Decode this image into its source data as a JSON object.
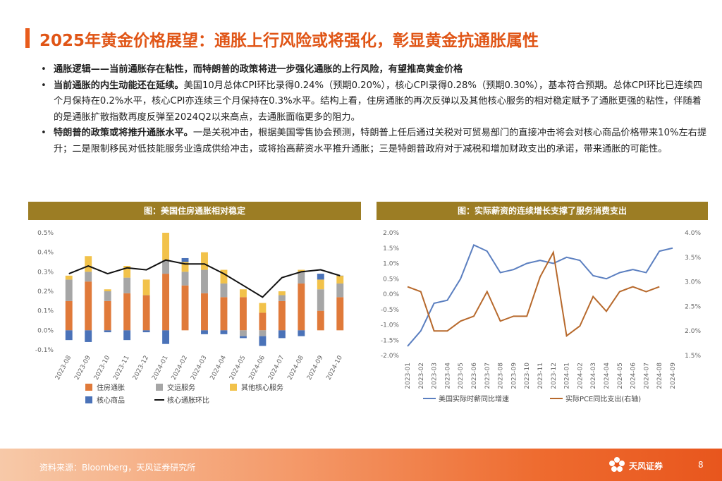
{
  "header": {
    "title": "2025年黄金价格展望：通胀上行风险或将强化，彰显黄金抗通胀属性"
  },
  "bullets": {
    "b1_bold": "通胀逻辑——当前通胀存在粘性，而特朗普的政策将进一步强化通胀的上行风险，有望推高黄金价格",
    "b2_bold": "当前通胀的内生动能还在延续。",
    "b2_text": "美国10月总体CPI环比录得0.24%（预期0.20%），核心CPI录得0.28%（预期0.30%），基本符合预期。总体CPI环比已连续四个月保持在0.2%水平，核心CPI亦连续三个月保持在0.3%水平。结构上看，住房通胀的再次反弹以及其他核心服务的相对稳定赋予了通胀更强的粘性，伴随着的是通胀扩散指数再度反弹至2024Q2以来高点，去通胀面临更多的阻力。",
    "b3_bold": "特朗普的政策或将推升通胀水平。",
    "b3_text": "一是关税冲击，根据美国零售协会预测，特朗普上任后通过关税对可贸易部门的直接冲击将会对核心商品价格带来10%左右提升；二是限制移民对低技能服务业造成供给冲击，或将抬高薪资水平推升通胀；三是特朗普政府对于减税和增加财政支出的承诺，带来通胀的可能性。"
  },
  "chart_data": [
    {
      "type": "bar",
      "title": "图：美国住房通胀相对稳定",
      "stacked": true,
      "categories": [
        "2023-08",
        "2023-09",
        "2023-10",
        "2023-11",
        "2023-12",
        "2024-01",
        "2024-02",
        "2024-03",
        "2024-04",
        "2024-05",
        "2024-06",
        "2024-07",
        "2024-08",
        "2024-09",
        "2024-10"
      ],
      "series": [
        {
          "name": "住房通胀",
          "color": "#e07a3a",
          "values": [
            0.15,
            0.25,
            0.15,
            0.19,
            0.18,
            0.29,
            0.23,
            0.19,
            0.17,
            0.17,
            0.09,
            0.15,
            0.24,
            0.1,
            0.17
          ]
        },
        {
          "name": "交运服务",
          "color": "#a6a6a6",
          "values": [
            0.11,
            0.05,
            0.05,
            0.08,
            0.0,
            0.07,
            0.07,
            0.12,
            0.07,
            -0.03,
            -0.03,
            0.03,
            0.06,
            0.11,
            0.07
          ]
        },
        {
          "name": "其他核心服务",
          "color": "#f2c24a",
          "values": [
            0.02,
            0.08,
            0.01,
            0.06,
            0.08,
            0.14,
            0.05,
            0.09,
            0.07,
            0.04,
            0.05,
            0.02,
            0.01,
            0.05,
            0.04
          ]
        },
        {
          "name": "核心商品",
          "color": "#4a72b8",
          "values": [
            -0.05,
            -0.06,
            -0.01,
            -0.05,
            -0.01,
            -0.07,
            0.02,
            -0.02,
            -0.02,
            -0.01,
            -0.05,
            -0.04,
            -0.03,
            0.03,
            0.0
          ]
        }
      ],
      "line": {
        "name": "核心通胀环比",
        "color": "#111111",
        "values": [
          0.29,
          0.33,
          0.29,
          0.32,
          0.31,
          0.36,
          0.34,
          0.34,
          0.29,
          0.23,
          0.17,
          0.27,
          0.3,
          0.31,
          0.28
        ]
      },
      "y_ticks": [
        "0.5%",
        "0.4%",
        "0.3%",
        "0.2%",
        "0.1%",
        "0.0%",
        "-0.1%"
      ],
      "ylim": [
        -0.1,
        0.5
      ],
      "legend_position": "bottom"
    },
    {
      "type": "line",
      "title": "图：实际薪资的连续增长支撑了服务消费支出",
      "categories": [
        "2023-01",
        "2023-02",
        "2023-03",
        "2023-04",
        "2023-05",
        "2023-06",
        "2023-07",
        "2023-08",
        "2023-09",
        "2023-10",
        "2023-11",
        "2023-12",
        "2024-01",
        "2024-02",
        "2024-03",
        "2024-04",
        "2024-05",
        "2024-06",
        "2024-07",
        "2024-08",
        "2024-09"
      ],
      "series": [
        {
          "name": "美国实际时薪同比增速",
          "axis": "left",
          "color": "#5b7fc0",
          "values": [
            -1.7,
            -1.2,
            -0.3,
            -0.2,
            0.5,
            1.6,
            1.4,
            0.7,
            0.8,
            1.0,
            1.1,
            1.0,
            1.2,
            1.1,
            0.6,
            0.5,
            0.7,
            0.8,
            0.7,
            1.4,
            1.5
          ]
        },
        {
          "name": "实际PCE同比支出(右轴)",
          "axis": "right",
          "color": "#b7692c",
          "values": [
            2.9,
            2.8,
            2.0,
            2.0,
            2.2,
            2.3,
            2.8,
            2.2,
            2.3,
            2.3,
            3.1,
            3.6,
            1.9,
            2.1,
            2.7,
            2.4,
            2.8,
            2.9,
            2.8,
            2.9,
            null
          ]
        }
      ],
      "y_left_ticks": [
        "2.0%",
        "1.5%",
        "1.0%",
        "0.5%",
        "0.0%",
        "-0.5%",
        "-1.0%",
        "-1.5%",
        "-2.0%"
      ],
      "y_right_ticks": [
        "4.0%",
        "3.5%",
        "3.0%",
        "2.5%",
        "2.0%",
        "1.5%"
      ],
      "ylim_left": [
        -2.0,
        2.0
      ],
      "ylim_right": [
        1.5,
        4.0
      ],
      "legend_position": "bottom"
    }
  ],
  "footer": {
    "source": "资料来源：Bloomberg，天风证券研究所",
    "logo_text": "天风证券",
    "page": "8"
  },
  "colors": {
    "accent": "#e05516",
    "panel_header": "#9c7d24"
  }
}
